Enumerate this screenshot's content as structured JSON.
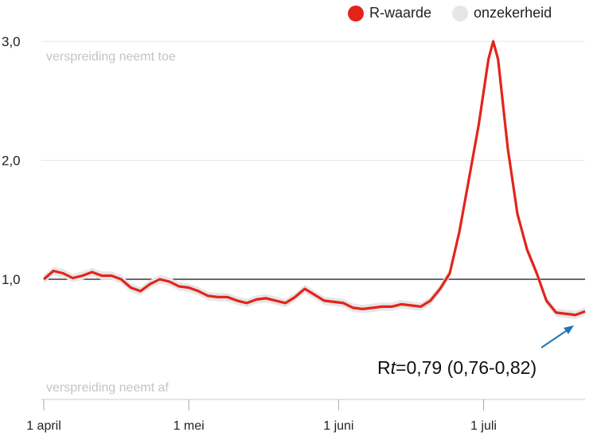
{
  "legend": {
    "items": [
      {
        "label": "R-waarde",
        "color": "#e3241b"
      },
      {
        "label": "onzekerheid",
        "color": "#e6e6e6"
      }
    ]
  },
  "zones": {
    "top": "verspreiding neemt toe",
    "bottom": "verspreiding neemt af"
  },
  "annotation": {
    "text_prefix": "R",
    "text_italic": "t",
    "text_suffix": "=0,79 (0,76-0,82)"
  },
  "chart_data": {
    "type": "line",
    "title": "",
    "xlabel": "",
    "ylabel": "",
    "x_ticks": [
      {
        "label": "1 april",
        "day": 0
      },
      {
        "label": "1 mei",
        "day": 30
      },
      {
        "label": "1 juni",
        "day": 61
      },
      {
        "label": "1 juli",
        "day": 91
      }
    ],
    "y_ticks": [
      {
        "label": "1,0",
        "value": 1.0
      },
      {
        "label": "2,0",
        "value": 2.0
      },
      {
        "label": "3,0",
        "value": 3.0
      }
    ],
    "reference_line": 1.0,
    "ylim": [
      0.0,
      3.2
    ],
    "xlim": [
      0,
      112
    ],
    "series": [
      {
        "name": "R-waarde",
        "color": "#e3241b",
        "band_color": "#e6e6e6",
        "points": [
          [
            0,
            1.0
          ],
          [
            2,
            1.07
          ],
          [
            4,
            1.05
          ],
          [
            6,
            1.01
          ],
          [
            8,
            1.03
          ],
          [
            10,
            1.06
          ],
          [
            12,
            1.03
          ],
          [
            14,
            1.03
          ],
          [
            16,
            1.0
          ],
          [
            18,
            0.93
          ],
          [
            20,
            0.9
          ],
          [
            22,
            0.96
          ],
          [
            24,
            1.0
          ],
          [
            26,
            0.98
          ],
          [
            28,
            0.94
          ],
          [
            30,
            0.93
          ],
          [
            32,
            0.9
          ],
          [
            34,
            0.86
          ],
          [
            36,
            0.85
          ],
          [
            38,
            0.85
          ],
          [
            40,
            0.82
          ],
          [
            42,
            0.8
          ],
          [
            44,
            0.83
          ],
          [
            46,
            0.84
          ],
          [
            48,
            0.82
          ],
          [
            50,
            0.8
          ],
          [
            52,
            0.85
          ],
          [
            54,
            0.92
          ],
          [
            56,
            0.87
          ],
          [
            58,
            0.82
          ],
          [
            60,
            0.81
          ],
          [
            62,
            0.8
          ],
          [
            64,
            0.76
          ],
          [
            66,
            0.75
          ],
          [
            68,
            0.76
          ],
          [
            70,
            0.77
          ],
          [
            72,
            0.77
          ],
          [
            74,
            0.79
          ],
          [
            76,
            0.78
          ],
          [
            78,
            0.77
          ],
          [
            80,
            0.82
          ],
          [
            82,
            0.92
          ],
          [
            84,
            1.05
          ],
          [
            86,
            1.4
          ],
          [
            88,
            1.85
          ],
          [
            90,
            2.3
          ],
          [
            92,
            2.85
          ],
          [
            93,
            3.0
          ],
          [
            94,
            2.85
          ],
          [
            96,
            2.1
          ],
          [
            98,
            1.55
          ],
          [
            100,
            1.25
          ],
          [
            102,
            1.05
          ],
          [
            104,
            0.82
          ],
          [
            106,
            0.72
          ],
          [
            108,
            0.71
          ],
          [
            110,
            0.7
          ],
          [
            112,
            0.73
          ]
        ],
        "band_halfwidth": 0.035
      }
    ],
    "grid": true
  }
}
